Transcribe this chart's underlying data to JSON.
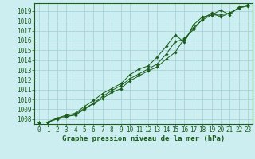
{
  "title": "Graphe pression niveau de la mer (hPa)",
  "bg_color": "#cceef0",
  "grid_color": "#a8d4d8",
  "line_color": "#1a5c1a",
  "xlim": [
    -0.5,
    23.5
  ],
  "ylim": [
    1007.5,
    1019.8
  ],
  "yticks": [
    1008,
    1009,
    1010,
    1011,
    1012,
    1013,
    1014,
    1015,
    1016,
    1017,
    1018,
    1019
  ],
  "xticks": [
    0,
    1,
    2,
    3,
    4,
    5,
    6,
    7,
    8,
    9,
    10,
    11,
    12,
    13,
    14,
    15,
    16,
    17,
    18,
    19,
    20,
    21,
    22,
    23
  ],
  "series": [
    [
      1007.7,
      1007.7,
      1008.1,
      1008.3,
      1008.4,
      1009.0,
      1009.6,
      1010.1,
      1010.7,
      1011.1,
      1011.9,
      1012.4,
      1012.9,
      1013.3,
      1014.1,
      1014.8,
      1016.2,
      1017.1,
      1018.2,
      1018.8,
      1018.4,
      1018.8,
      1019.3,
      1019.5
    ],
    [
      1007.7,
      1007.7,
      1008.1,
      1008.4,
      1008.6,
      1009.3,
      1009.9,
      1010.6,
      1011.1,
      1011.6,
      1012.5,
      1013.1,
      1013.4,
      1014.3,
      1015.4,
      1016.6,
      1015.8,
      1017.6,
      1018.4,
      1018.6,
      1019.1,
      1018.6,
      1019.4,
      1019.6
    ],
    [
      1007.7,
      1007.7,
      1008.0,
      1008.2,
      1008.5,
      1009.1,
      1009.6,
      1010.3,
      1010.9,
      1011.4,
      1012.1,
      1012.6,
      1013.1,
      1013.6,
      1014.6,
      1015.9,
      1016.1,
      1017.3,
      1018.1,
      1018.6,
      1018.6,
      1018.8,
      1019.3,
      1019.6
    ]
  ],
  "tick_fontsize": 5.5,
  "label_fontsize": 6.5
}
